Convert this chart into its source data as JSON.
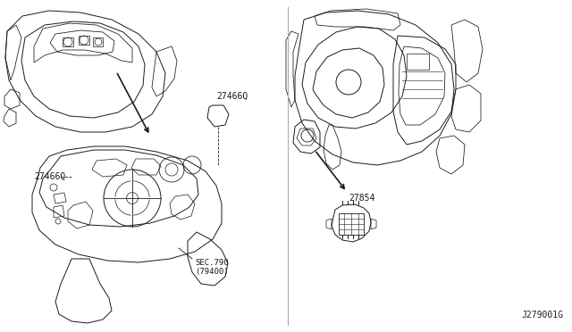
{
  "bg_color": "#ffffff",
  "line_color": "#1a1a1a",
  "gray_color": "#888888",
  "labels": {
    "top_part": "27466Q",
    "bottom_part": "27466Q",
    "right_part": "27854",
    "sec_label_1": "SEC.790",
    "sec_label_2": "(79400)",
    "diagram_id": "J279001G"
  },
  "figsize": [
    6.4,
    3.72
  ],
  "dpi": 100,
  "lw": 0.7
}
